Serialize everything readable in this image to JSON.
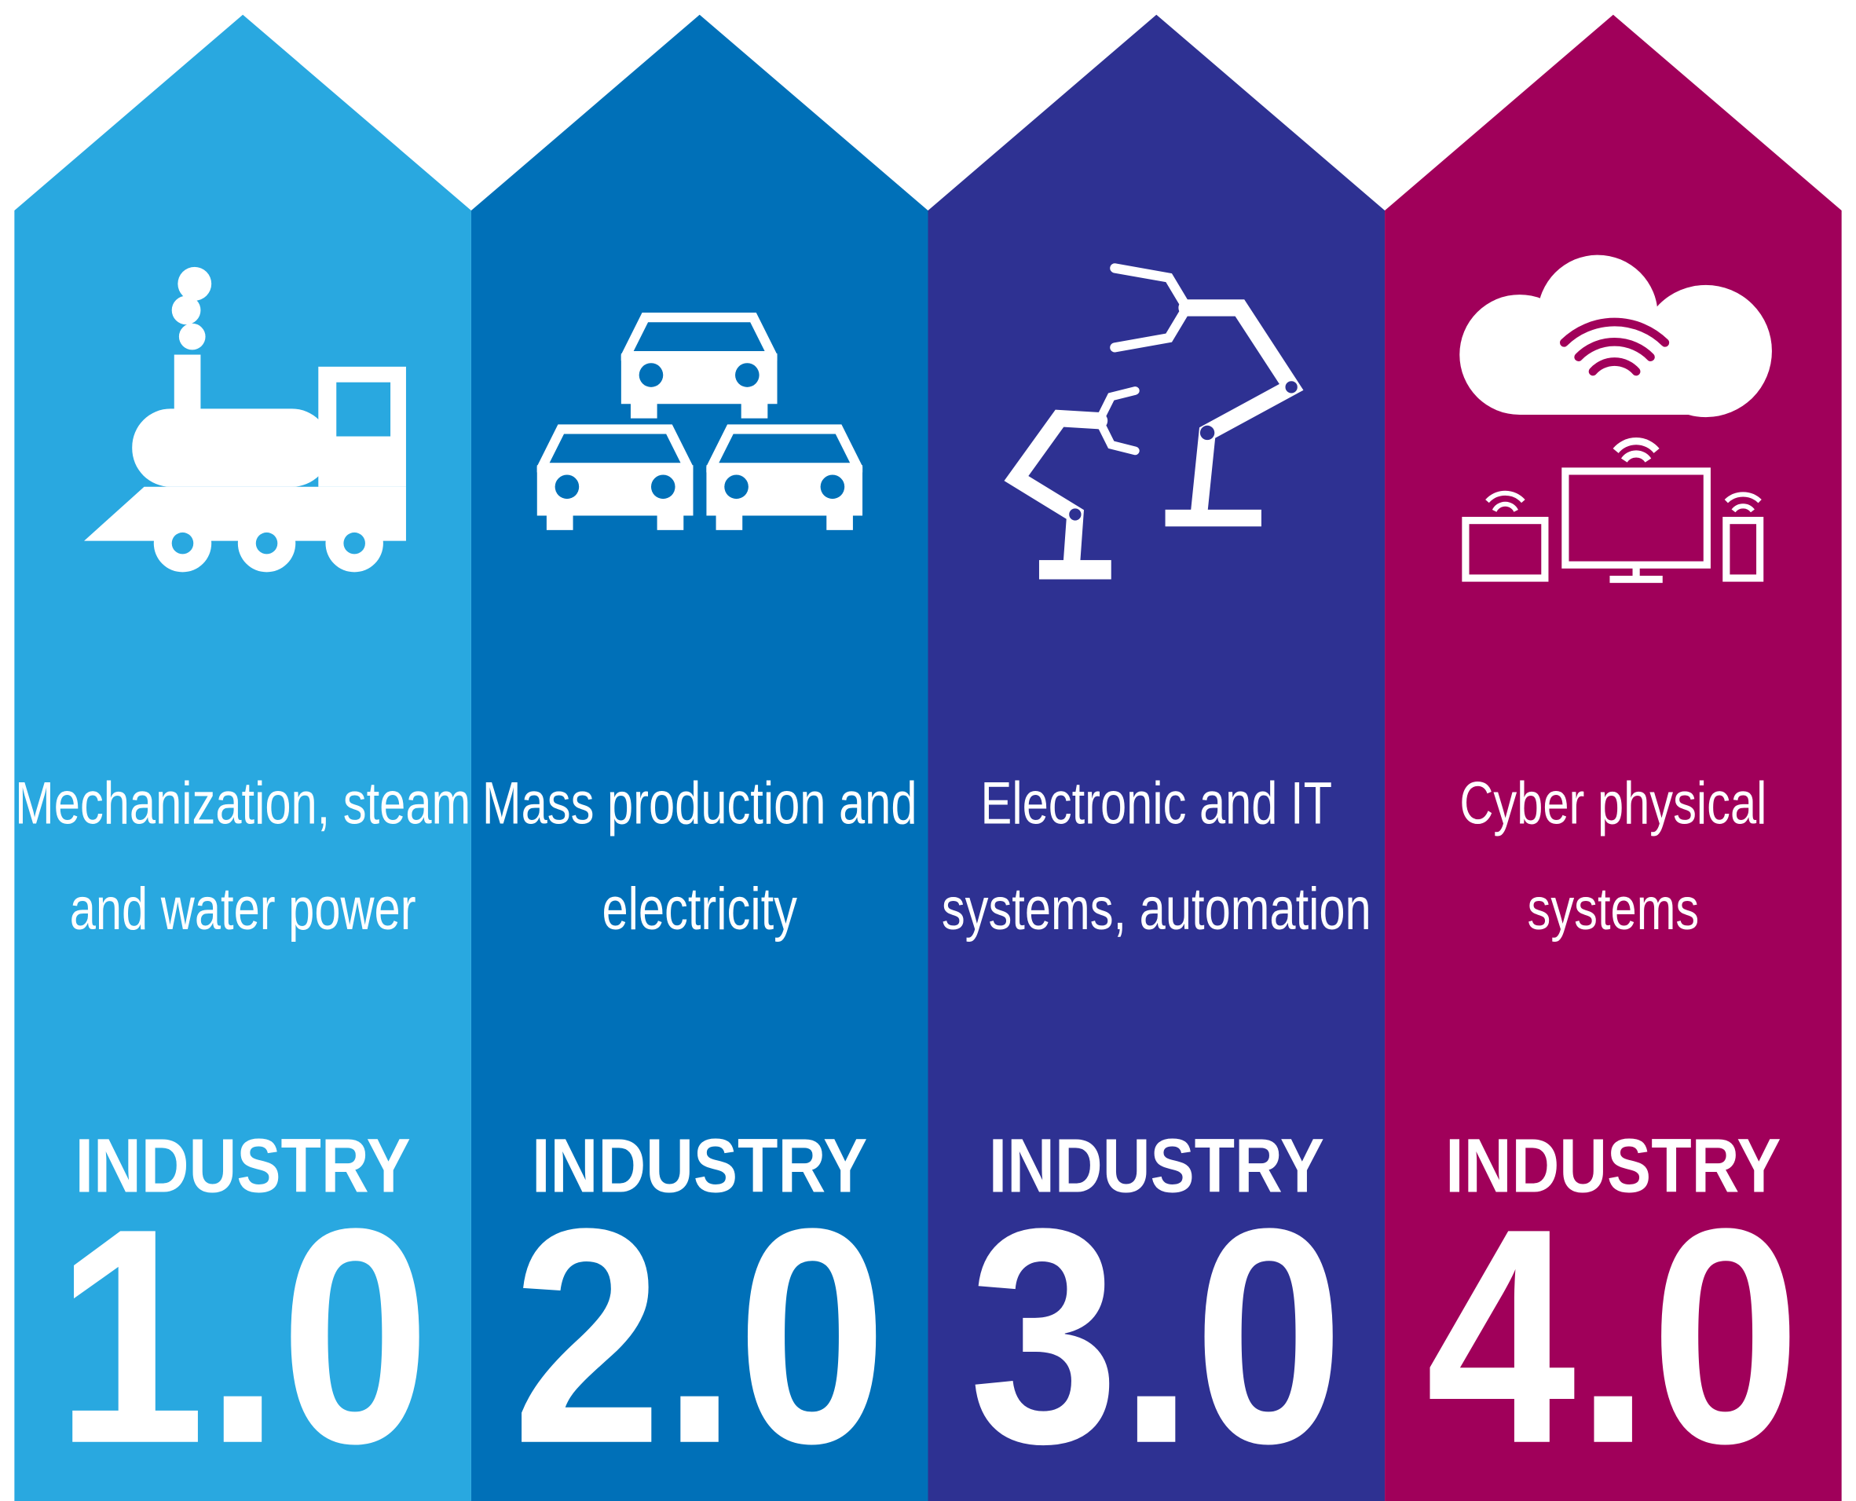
{
  "columns": [
    {
      "description": [
        "Mechanization, steam",
        "and water power"
      ],
      "label": "INDUSTRY",
      "number": "1.0",
      "color": "#29a8e0"
    },
    {
      "description": [
        "Mass production and",
        "electricity"
      ],
      "label": "INDUSTRY",
      "number": "2.0",
      "color": "#0070b8"
    },
    {
      "description": [
        "Electronic and IT",
        "systems, automation"
      ],
      "label": "INDUSTRY",
      "number": "3.0",
      "color": "#2e3192"
    },
    {
      "description": [
        "Cyber physical",
        "systems"
      ],
      "label": "INDUSTRY",
      "number": "4.0",
      "color": "#a0005a"
    }
  ]
}
